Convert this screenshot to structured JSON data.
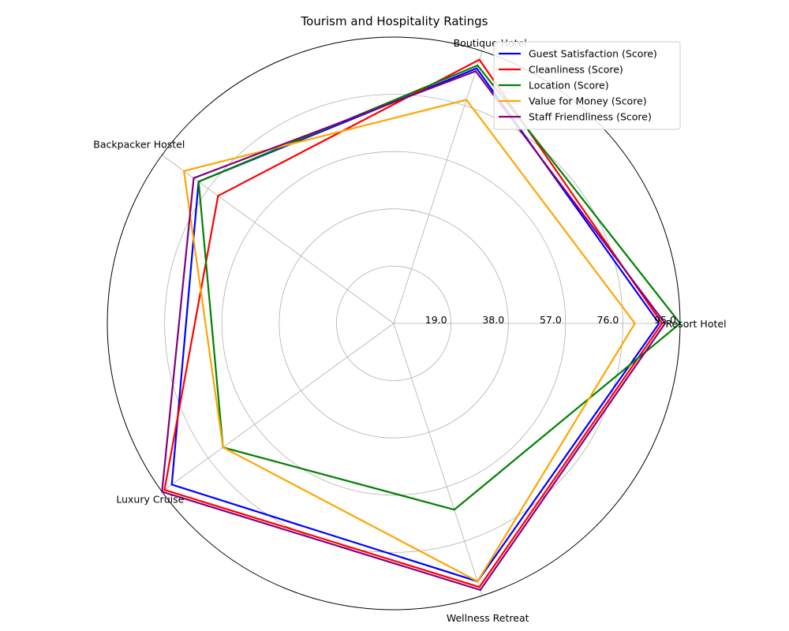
{
  "chart_data": {
    "type": "radar",
    "title": "Tourism and Hospitality Ratings",
    "categories": [
      "Resort Hotel",
      "Boutique Hotel",
      "Backpacker Hostel",
      "Luxury Cruise",
      "Wellness Retreat"
    ],
    "rticks": [
      19.0,
      38.0,
      57.0,
      76.0,
      95.0
    ],
    "rlim": [
      0,
      95
    ],
    "grid": true,
    "legend_position": "top-right",
    "series": [
      {
        "name": "Guest Satisfaction (Score)",
        "color": "#0000ff",
        "values": [
          88,
          89,
          80,
          91,
          90
        ]
      },
      {
        "name": "Cleanliness (Score)",
        "color": "#ff0000",
        "values": [
          89,
          92,
          72,
          94,
          92
        ]
      },
      {
        "name": "Location (Score)",
        "color": "#008000",
        "values": [
          95,
          90,
          80,
          70,
          65
        ]
      },
      {
        "name": "Value for Money (Score)",
        "color": "#ffa500",
        "values": [
          80,
          78,
          86,
          70,
          90
        ]
      },
      {
        "name": "Staff Friendliness (Score)",
        "color": "#800080",
        "values": [
          90,
          88,
          82,
          95,
          93
        ]
      }
    ]
  }
}
